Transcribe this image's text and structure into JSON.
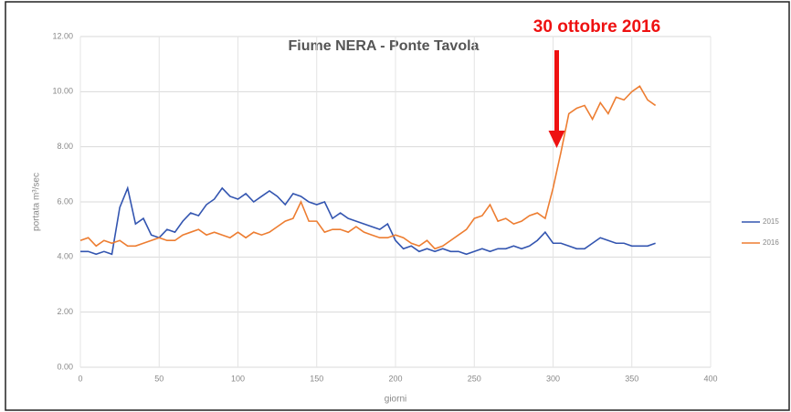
{
  "chart_data": {
    "type": "line",
    "title": "Fiume NERA - Ponte Tavola",
    "annotation": "30 ottobre 2016",
    "annotation_x": 300,
    "xlabel": "giorni",
    "ylabel": "portata m³/sec",
    "x": [
      0,
      5,
      10,
      15,
      20,
      25,
      30,
      35,
      40,
      45,
      50,
      55,
      60,
      65,
      70,
      75,
      80,
      85,
      90,
      95,
      100,
      105,
      110,
      115,
      120,
      125,
      130,
      135,
      140,
      145,
      150,
      155,
      160,
      165,
      170,
      175,
      180,
      185,
      190,
      195,
      200,
      205,
      210,
      215,
      220,
      225,
      230,
      235,
      240,
      245,
      250,
      255,
      260,
      265,
      270,
      275,
      280,
      285,
      290,
      295,
      300,
      305,
      310,
      315,
      320,
      325,
      330,
      335,
      340,
      345,
      350,
      355,
      360,
      365
    ],
    "series": [
      {
        "name": "2015",
        "color": "#3355b0",
        "values": [
          4.2,
          4.2,
          4.1,
          4.2,
          4.1,
          5.8,
          6.5,
          5.2,
          5.4,
          4.8,
          4.7,
          5.0,
          4.9,
          5.3,
          5.6,
          5.5,
          5.9,
          6.1,
          6.5,
          6.2,
          6.1,
          6.3,
          6.0,
          6.2,
          6.4,
          6.2,
          5.9,
          6.3,
          6.2,
          6.0,
          5.9,
          6.0,
          5.4,
          5.6,
          5.4,
          5.3,
          5.2,
          5.1,
          5.0,
          5.2,
          4.6,
          4.3,
          4.4,
          4.2,
          4.3,
          4.2,
          4.3,
          4.2,
          4.2,
          4.1,
          4.2,
          4.3,
          4.2,
          4.3,
          4.3,
          4.4,
          4.3,
          4.4,
          4.6,
          4.9,
          4.5,
          4.5,
          4.4,
          4.3,
          4.3,
          4.5,
          4.7,
          4.6,
          4.5,
          4.5,
          4.4,
          4.4,
          4.4,
          4.5
        ]
      },
      {
        "name": "2016",
        "color": "#ed7d31",
        "values": [
          4.6,
          4.7,
          4.4,
          4.6,
          4.5,
          4.6,
          4.4,
          4.4,
          4.5,
          4.6,
          4.7,
          4.6,
          4.6,
          4.8,
          4.9,
          5.0,
          4.8,
          4.9,
          4.8,
          4.7,
          4.9,
          4.7,
          4.9,
          4.8,
          4.9,
          5.1,
          5.3,
          5.4,
          6.0,
          5.3,
          5.3,
          4.9,
          5.0,
          5.0,
          4.9,
          5.1,
          4.9,
          4.8,
          4.7,
          4.7,
          4.8,
          4.7,
          4.5,
          4.4,
          4.6,
          4.3,
          4.4,
          4.6,
          4.8,
          5.0,
          5.4,
          5.5,
          5.9,
          5.3,
          5.4,
          5.2,
          5.3,
          5.5,
          5.6,
          5.4,
          6.5,
          7.8,
          9.2,
          9.4,
          9.5,
          9.0,
          9.6,
          9.2,
          9.8,
          9.7,
          10.0,
          10.2,
          9.7,
          9.5
        ]
      }
    ],
    "xlim": [
      0,
      400
    ],
    "xticks": [
      0,
      50,
      100,
      150,
      200,
      250,
      300,
      350,
      400
    ],
    "ylim": [
      0,
      12
    ],
    "yticks": [
      {
        "value": 0,
        "label": "0.00"
      },
      {
        "value": 2,
        "label": "2.00"
      },
      {
        "value": 4,
        "label": "4.00"
      },
      {
        "value": 6,
        "label": "6.00"
      },
      {
        "value": 8,
        "label": "8.00"
      },
      {
        "value": 10,
        "label": "10.00"
      },
      {
        "value": 12,
        "label": "12.00"
      }
    ],
    "grid": true
  }
}
